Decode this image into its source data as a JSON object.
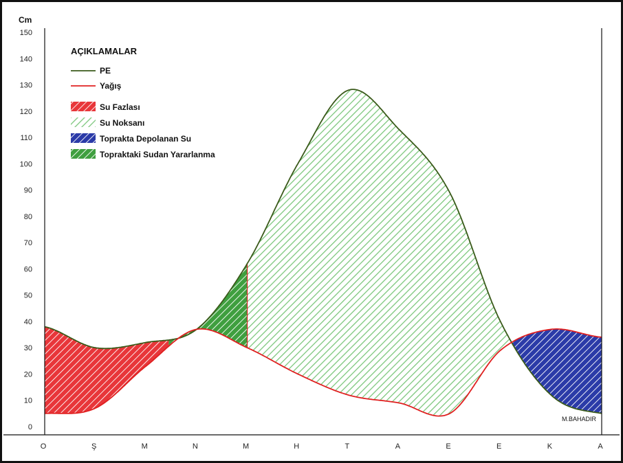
{
  "chart_data": {
    "type": "area",
    "ylabel": "Cm",
    "ylim": [
      0,
      150
    ],
    "y_ticks": [
      0,
      10,
      20,
      30,
      40,
      50,
      60,
      70,
      80,
      90,
      100,
      110,
      120,
      130,
      140,
      150
    ],
    "months": [
      "O",
      "Ş",
      "M",
      "N",
      "M",
      "H",
      "T",
      "A",
      "E",
      "E",
      "K",
      "A"
    ],
    "series": [
      {
        "name": "PE",
        "color": "#3a5a1a",
        "values": [
          38,
          30,
          32,
          37,
          62,
          100,
          128,
          113,
          89,
          40,
          12,
          5
        ]
      },
      {
        "name": "Yağış",
        "color": "#e02020",
        "values": [
          5,
          7,
          23,
          37,
          30,
          20,
          12,
          9,
          5,
          29,
          37,
          34
        ]
      }
    ],
    "legend": {
      "title": "AÇIKLAMALAR",
      "items": [
        {
          "label": "PE",
          "kind": "line",
          "color": "#3a5a1a"
        },
        {
          "label": "Yağış",
          "kind": "line",
          "color": "#e02020"
        },
        {
          "label": "Su Fazlası",
          "kind": "hatch",
          "color": "#e02020"
        },
        {
          "label": "Su Noksanı",
          "kind": "hatch",
          "color": "#8fd08f"
        },
        {
          "label": "Toprakta Depolanan Su",
          "kind": "hatch",
          "color": "#2d3fb0"
        },
        {
          "label": "Topraktaki Sudan Yararlanma",
          "kind": "hatch",
          "color": "#40a040"
        }
      ]
    },
    "author": "M.BAHADIR"
  }
}
